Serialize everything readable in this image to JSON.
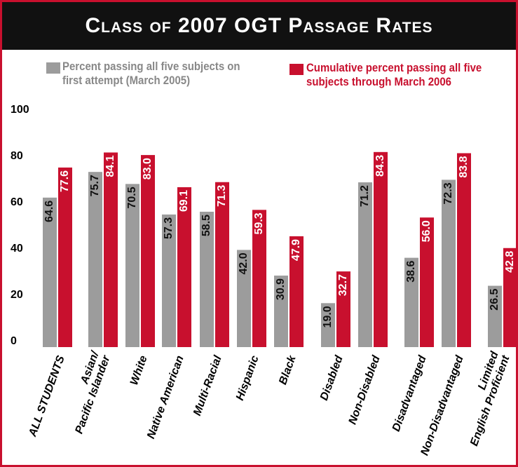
{
  "chart_data": {
    "type": "bar",
    "title": "Class of 2007 OGT Passage Rates",
    "categories": [
      "ALL STUDENTS",
      "Asian/\nPacific Islander",
      "White",
      "Native American",
      "Multi-Racial",
      "Hispanic",
      "Black",
      "Disabled",
      "Non-Disabled",
      "Disadvantaged",
      "Non-Disadvantaged",
      "Limited\nEnglish Proficient"
    ],
    "series": [
      {
        "name": "Percent passing all five subjects on first attempt (March 2005)",
        "color": "#9c9c9c",
        "values": [
          64.6,
          75.7,
          70.5,
          57.3,
          58.5,
          42.0,
          30.9,
          19.0,
          71.2,
          38.6,
          72.3,
          26.5
        ],
        "value_labels": [
          "64.6",
          "75.7",
          "70.5",
          "57.3",
          "58.5",
          "42.0",
          "30.9",
          "19.0",
          "71.2",
          "38.6",
          "72.3",
          "26.5"
        ]
      },
      {
        "name": "Cumulative percent passing all five subjects through March 2006",
        "color": "#c8102e",
        "values": [
          77.6,
          84.1,
          83.0,
          69.1,
          71.3,
          59.3,
          47.9,
          32.7,
          84.3,
          56.0,
          83.8,
          42.8
        ],
        "value_labels": [
          "77.6",
          "84.1",
          "83.0",
          "69.1",
          "71.3",
          "59.3",
          "47.9",
          "32.7",
          "84.3",
          "56.0",
          "83.8",
          "42.8"
        ]
      }
    ],
    "ylim": [
      0,
      100
    ],
    "yticks": [
      0,
      20,
      40,
      60,
      80,
      100
    ],
    "grid": false
  }
}
